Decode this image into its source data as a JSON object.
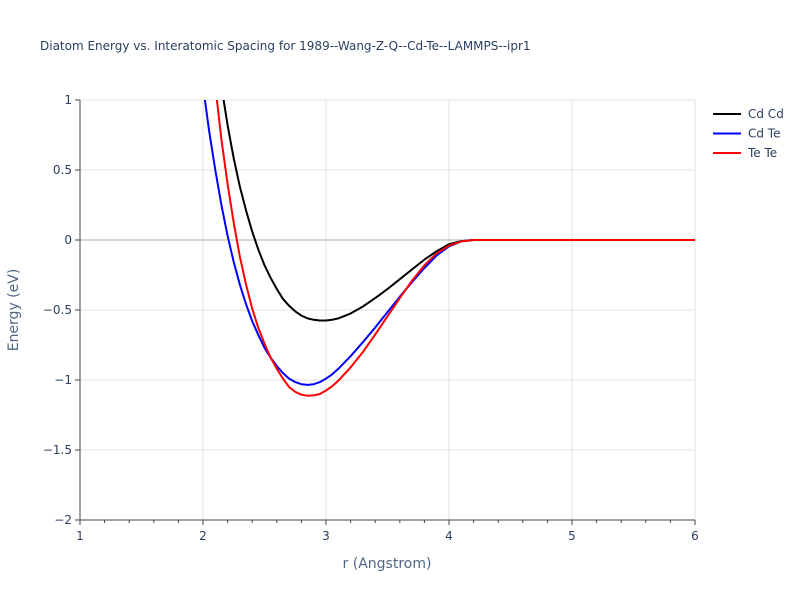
{
  "chart_data": {
    "type": "line",
    "title": "Diatom Energy vs. Interatomic Spacing for 1989--Wang-Z-Q--Cd-Te--LAMMPS--ipr1",
    "xlabel": "r (Angstrom)",
    "ylabel": "Energy (eV)",
    "xlim": [
      1,
      6
    ],
    "ylim": [
      -2,
      1
    ],
    "x_ticks": [
      "1",
      "2",
      "3",
      "4",
      "5",
      "6"
    ],
    "y_ticks": [
      "1",
      "0.5",
      "0",
      "−0.5",
      "−1",
      "−1.5",
      "−2"
    ],
    "grid": true,
    "legend_position": "top-right",
    "series": [
      {
        "name": "Cd Cd",
        "color": "#000000",
        "x": [
          2.15,
          2.2,
          2.25,
          2.3,
          2.35,
          2.4,
          2.45,
          2.5,
          2.55,
          2.6,
          2.65,
          2.7,
          2.75,
          2.8,
          2.85,
          2.9,
          2.95,
          3.0,
          3.05,
          3.1,
          3.2,
          3.3,
          3.4,
          3.5,
          3.6,
          3.7,
          3.8,
          3.9,
          4.0,
          4.1,
          4.2,
          4.3,
          4.5,
          5.0,
          5.5,
          6.0
        ],
        "y": [
          1.1,
          0.82,
          0.58,
          0.38,
          0.21,
          0.06,
          -0.07,
          -0.18,
          -0.27,
          -0.35,
          -0.42,
          -0.47,
          -0.51,
          -0.54,
          -0.56,
          -0.57,
          -0.575,
          -0.575,
          -0.57,
          -0.56,
          -0.525,
          -0.475,
          -0.415,
          -0.35,
          -0.28,
          -0.21,
          -0.14,
          -0.08,
          -0.03,
          -0.008,
          0.0,
          0.0,
          0.0,
          0.0,
          0.0,
          0.0
        ]
      },
      {
        "name": "Cd Te",
        "color": "#0000ff",
        "x": [
          2.0,
          2.05,
          2.1,
          2.15,
          2.2,
          2.25,
          2.3,
          2.35,
          2.4,
          2.45,
          2.5,
          2.55,
          2.6,
          2.65,
          2.7,
          2.75,
          2.8,
          2.85,
          2.9,
          2.95,
          3.0,
          3.05,
          3.1,
          3.2,
          3.3,
          3.4,
          3.5,
          3.6,
          3.7,
          3.8,
          3.9,
          4.0,
          4.1,
          4.2,
          4.3,
          4.5,
          5.0,
          5.5,
          6.0
        ],
        "y": [
          1.1,
          0.78,
          0.5,
          0.25,
          0.03,
          -0.16,
          -0.32,
          -0.46,
          -0.58,
          -0.68,
          -0.77,
          -0.84,
          -0.9,
          -0.95,
          -0.99,
          -1.015,
          -1.03,
          -1.035,
          -1.03,
          -1.015,
          -0.99,
          -0.96,
          -0.92,
          -0.83,
          -0.73,
          -0.625,
          -0.515,
          -0.405,
          -0.3,
          -0.2,
          -0.11,
          -0.045,
          -0.01,
          0.0,
          0.0,
          0.0,
          0.0,
          0.0,
          0.0
        ]
      },
      {
        "name": "Te Te",
        "color": "#ff0000",
        "x": [
          2.1,
          2.15,
          2.2,
          2.25,
          2.3,
          2.35,
          2.4,
          2.45,
          2.5,
          2.55,
          2.6,
          2.65,
          2.7,
          2.75,
          2.8,
          2.85,
          2.9,
          2.95,
          3.0,
          3.05,
          3.1,
          3.2,
          3.3,
          3.4,
          3.5,
          3.6,
          3.7,
          3.8,
          3.9,
          4.0,
          4.1,
          4.2,
          4.3,
          4.5,
          5.0,
          5.5,
          6.0
        ],
        "y": [
          1.1,
          0.72,
          0.4,
          0.12,
          -0.12,
          -0.32,
          -0.49,
          -0.63,
          -0.74,
          -0.84,
          -0.92,
          -0.99,
          -1.05,
          -1.085,
          -1.105,
          -1.112,
          -1.11,
          -1.1,
          -1.075,
          -1.045,
          -1.005,
          -0.91,
          -0.8,
          -0.675,
          -0.545,
          -0.415,
          -0.29,
          -0.18,
          -0.095,
          -0.04,
          -0.01,
          0.0,
          0.0,
          0.0,
          0.0,
          0.0,
          0.0
        ]
      }
    ]
  }
}
